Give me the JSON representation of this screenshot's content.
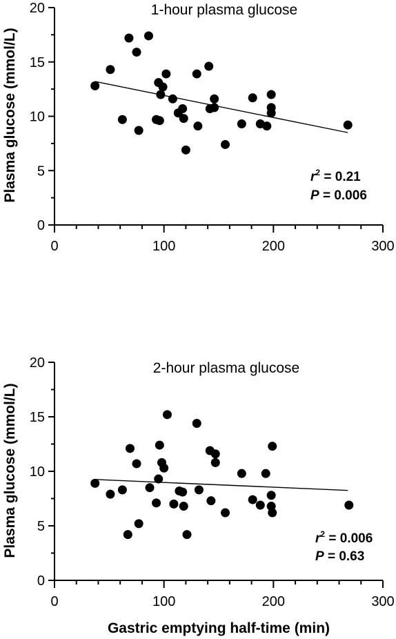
{
  "chart_data": [
    {
      "type": "scatter",
      "title": "1-hour plasma glucose",
      "ylabel": "Plasma glucose (mmol/L)",
      "xlabel": "",
      "xlim": [
        0,
        300
      ],
      "ylim": [
        0,
        20
      ],
      "x_ticks": [
        "0",
        "100",
        "200",
        "300"
      ],
      "y_ticks": [
        "0",
        "5",
        "10",
        "15",
        "20"
      ],
      "grid": false,
      "points": [
        {
          "x": 37,
          "y": 12.8
        },
        {
          "x": 51,
          "y": 14.3
        },
        {
          "x": 62,
          "y": 9.7
        },
        {
          "x": 68,
          "y": 17.2
        },
        {
          "x": 75,
          "y": 15.9
        },
        {
          "x": 77,
          "y": 8.7
        },
        {
          "x": 86,
          "y": 17.4
        },
        {
          "x": 93,
          "y": 9.7
        },
        {
          "x": 95,
          "y": 13.1
        },
        {
          "x": 96,
          "y": 9.6
        },
        {
          "x": 97,
          "y": 12.0
        },
        {
          "x": 99,
          "y": 12.7
        },
        {
          "x": 102,
          "y": 13.9
        },
        {
          "x": 108,
          "y": 11.6
        },
        {
          "x": 113,
          "y": 10.3
        },
        {
          "x": 117,
          "y": 10.7
        },
        {
          "x": 118,
          "y": 9.8
        },
        {
          "x": 120,
          "y": 6.9
        },
        {
          "x": 130,
          "y": 13.9
        },
        {
          "x": 131,
          "y": 9.1
        },
        {
          "x": 141,
          "y": 14.6
        },
        {
          "x": 142,
          "y": 10.7
        },
        {
          "x": 146,
          "y": 11.6
        },
        {
          "x": 146,
          "y": 10.8
        },
        {
          "x": 156,
          "y": 7.4
        },
        {
          "x": 171,
          "y": 9.3
        },
        {
          "x": 181,
          "y": 11.7
        },
        {
          "x": 188,
          "y": 9.3
        },
        {
          "x": 194,
          "y": 9.1
        },
        {
          "x": 198,
          "y": 12.0
        },
        {
          "x": 198,
          "y": 10.8
        },
        {
          "x": 198,
          "y": 10.3
        },
        {
          "x": 268,
          "y": 9.2
        }
      ],
      "regression_line": {
        "x": [
          37,
          268
        ],
        "y": [
          13.2,
          8.5
        ]
      },
      "stats": {
        "r2_symbol": "r",
        "r2_exp": "2",
        "r2_value": " = 0.21",
        "p_symbol": "P",
        "p_value": " = 0.006"
      }
    },
    {
      "type": "scatter",
      "title": "2-hour plasma glucose",
      "ylabel": "Plasma glucose (mmol/L)",
      "xlabel": "Gastric emptying half-time (min)",
      "xlim": [
        0,
        300
      ],
      "ylim": [
        0,
        20
      ],
      "x_ticks": [
        "0",
        "100",
        "200",
        "300"
      ],
      "y_ticks": [
        "0",
        "5",
        "10",
        "15",
        "20"
      ],
      "grid": false,
      "points": [
        {
          "x": 37,
          "y": 8.9
        },
        {
          "x": 51,
          "y": 7.9
        },
        {
          "x": 62,
          "y": 8.3
        },
        {
          "x": 67,
          "y": 4.2
        },
        {
          "x": 69,
          "y": 12.1
        },
        {
          "x": 75,
          "y": 10.7
        },
        {
          "x": 77,
          "y": 5.2
        },
        {
          "x": 87,
          "y": 8.5
        },
        {
          "x": 93,
          "y": 7.1
        },
        {
          "x": 95,
          "y": 9.3
        },
        {
          "x": 96,
          "y": 12.4
        },
        {
          "x": 98,
          "y": 10.8
        },
        {
          "x": 100,
          "y": 10.3
        },
        {
          "x": 103,
          "y": 15.2
        },
        {
          "x": 109,
          "y": 7.0
        },
        {
          "x": 114,
          "y": 8.2
        },
        {
          "x": 117,
          "y": 8.1
        },
        {
          "x": 118,
          "y": 6.8
        },
        {
          "x": 121,
          "y": 4.2
        },
        {
          "x": 130,
          "y": 14.4
        },
        {
          "x": 132,
          "y": 8.3
        },
        {
          "x": 142,
          "y": 11.9
        },
        {
          "x": 143,
          "y": 7.3
        },
        {
          "x": 147,
          "y": 11.6
        },
        {
          "x": 147,
          "y": 10.8
        },
        {
          "x": 156,
          "y": 6.2
        },
        {
          "x": 171,
          "y": 9.8
        },
        {
          "x": 181,
          "y": 7.4
        },
        {
          "x": 188,
          "y": 6.9
        },
        {
          "x": 193,
          "y": 9.8
        },
        {
          "x": 198,
          "y": 7.8
        },
        {
          "x": 198,
          "y": 6.8
        },
        {
          "x": 199,
          "y": 12.3
        },
        {
          "x": 199,
          "y": 6.2
        },
        {
          "x": 269,
          "y": 6.9
        }
      ],
      "regression_line": {
        "x": [
          37,
          268
        ],
        "y": [
          9.25,
          8.25
        ]
      },
      "stats": {
        "r2_symbol": "r",
        "r2_exp": "2",
        "r2_value": " = 0.006",
        "p_symbol": "P",
        "p_value": " = 0.63"
      }
    }
  ]
}
